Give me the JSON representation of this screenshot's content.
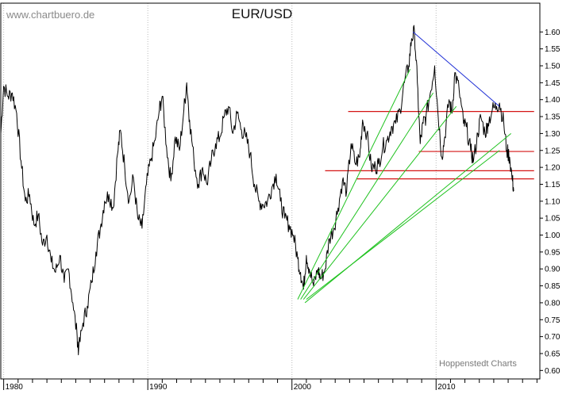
{
  "header": {
    "watermark": "www.chartbuero.de",
    "title": "EUR/USD"
  },
  "footer": {
    "credit": "Hoppenstedt Charts"
  },
  "colors": {
    "price": "#000000",
    "downtrend": "#1f2fd6",
    "fan": "#1fc21f",
    "horizontal": "#d41414",
    "grid": "#bbbbbb",
    "frame": "#000000"
  },
  "chart_data": {
    "type": "line",
    "title": "EUR/USD",
    "xlabel": "",
    "ylabel": "",
    "xlim": [
      1979.8,
      2017.2
    ],
    "ylim": [
      0.575,
      1.685
    ],
    "x_ticks": [
      1980,
      1990,
      2000,
      2010
    ],
    "x_tick_labels": [
      "1980",
      "1990",
      "2000",
      "2010"
    ],
    "y_ticks": [
      0.6,
      0.65,
      0.7,
      0.75,
      0.8,
      0.85,
      0.9,
      0.95,
      1.0,
      1.05,
      1.1,
      1.15,
      1.2,
      1.25,
      1.3,
      1.35,
      1.4,
      1.45,
      1.5,
      1.55,
      1.6
    ],
    "y_tick_labels": [
      "0.60",
      "0.65",
      "0.70",
      "0.75",
      "0.80",
      "0.85",
      "0.90",
      "0.95",
      "1.00",
      "1.05",
      "1.10",
      "1.15",
      "1.20",
      "1.25",
      "1.30",
      "1.35",
      "1.40",
      "1.45",
      "1.50",
      "1.55",
      "1.60"
    ],
    "y_axis_side": "right",
    "grid": "vertical dotted",
    "series": [
      {
        "points": [
          [
            1979.8,
            1.3
          ],
          [
            1980.0,
            1.44
          ],
          [
            1980.3,
            1.41
          ],
          [
            1980.6,
            1.42
          ],
          [
            1980.9,
            1.36
          ],
          [
            1981.2,
            1.22
          ],
          [
            1981.5,
            1.1
          ],
          [
            1981.8,
            1.12
          ],
          [
            1982.1,
            1.03
          ],
          [
            1982.4,
            1.06
          ],
          [
            1982.7,
            0.97
          ],
          [
            1983.0,
            1.0
          ],
          [
            1983.3,
            0.92
          ],
          [
            1983.6,
            0.89
          ],
          [
            1983.9,
            0.94
          ],
          [
            1984.2,
            0.86
          ],
          [
            1984.5,
            0.9
          ],
          [
            1984.8,
            0.8
          ],
          [
            1985.1,
            0.7
          ],
          [
            1985.2,
            0.66
          ],
          [
            1985.5,
            0.74
          ],
          [
            1985.8,
            0.79
          ],
          [
            1986.1,
            0.86
          ],
          [
            1986.4,
            0.95
          ],
          [
            1986.7,
            1.02
          ],
          [
            1987.0,
            1.1
          ],
          [
            1987.3,
            1.12
          ],
          [
            1987.6,
            1.08
          ],
          [
            1987.9,
            1.24
          ],
          [
            1988.1,
            1.31
          ],
          [
            1988.4,
            1.2
          ],
          [
            1988.7,
            1.1
          ],
          [
            1989.0,
            1.17
          ],
          [
            1989.3,
            1.05
          ],
          [
            1989.6,
            1.02
          ],
          [
            1989.9,
            1.15
          ],
          [
            1990.2,
            1.22
          ],
          [
            1990.5,
            1.28
          ],
          [
            1990.8,
            1.37
          ],
          [
            1991.0,
            1.41
          ],
          [
            1991.3,
            1.26
          ],
          [
            1991.6,
            1.16
          ],
          [
            1991.9,
            1.29
          ],
          [
            1992.2,
            1.25
          ],
          [
            1992.5,
            1.37
          ],
          [
            1992.7,
            1.45
          ],
          [
            1992.9,
            1.34
          ],
          [
            1993.2,
            1.22
          ],
          [
            1993.5,
            1.15
          ],
          [
            1993.8,
            1.2
          ],
          [
            1994.1,
            1.15
          ],
          [
            1994.4,
            1.22
          ],
          [
            1994.7,
            1.27
          ],
          [
            1995.0,
            1.29
          ],
          [
            1995.3,
            1.35
          ],
          [
            1995.6,
            1.38
          ],
          [
            1995.9,
            1.3
          ],
          [
            1996.2,
            1.36
          ],
          [
            1996.5,
            1.31
          ],
          [
            1996.8,
            1.29
          ],
          [
            1997.1,
            1.24
          ],
          [
            1997.4,
            1.15
          ],
          [
            1997.7,
            1.1
          ],
          [
            1998.0,
            1.09
          ],
          [
            1998.3,
            1.1
          ],
          [
            1998.6,
            1.14
          ],
          [
            1998.9,
            1.18
          ],
          [
            1999.2,
            1.1
          ],
          [
            1999.5,
            1.05
          ],
          [
            1999.8,
            1.03
          ],
          [
            2000.1,
            1.0
          ],
          [
            2000.4,
            0.93
          ],
          [
            2000.6,
            0.89
          ],
          [
            2000.8,
            0.84
          ],
          [
            2001.0,
            0.94
          ],
          [
            2001.2,
            0.9
          ],
          [
            2001.5,
            0.85
          ],
          [
            2001.8,
            0.9
          ],
          [
            2002.0,
            0.87
          ],
          [
            2002.3,
            0.9
          ],
          [
            2002.6,
            0.99
          ],
          [
            2002.9,
            1.02
          ],
          [
            2003.2,
            1.08
          ],
          [
            2003.5,
            1.16
          ],
          [
            2003.8,
            1.13
          ],
          [
            2004.1,
            1.27
          ],
          [
            2004.4,
            1.21
          ],
          [
            2004.7,
            1.23
          ],
          [
            2004.9,
            1.34
          ],
          [
            2005.2,
            1.3
          ],
          [
            2005.5,
            1.2
          ],
          [
            2005.8,
            1.2
          ],
          [
            2006.0,
            1.21
          ],
          [
            2006.3,
            1.26
          ],
          [
            2006.6,
            1.28
          ],
          [
            2006.9,
            1.32
          ],
          [
            2007.2,
            1.33
          ],
          [
            2007.5,
            1.37
          ],
          [
            2007.8,
            1.45
          ],
          [
            2008.1,
            1.5
          ],
          [
            2008.3,
            1.58
          ],
          [
            2008.5,
            1.6
          ],
          [
            2008.7,
            1.45
          ],
          [
            2008.9,
            1.27
          ],
          [
            2009.1,
            1.33
          ],
          [
            2009.3,
            1.35
          ],
          [
            2009.6,
            1.42
          ],
          [
            2009.9,
            1.5
          ],
          [
            2010.1,
            1.38
          ],
          [
            2010.4,
            1.23
          ],
          [
            2010.6,
            1.29
          ],
          [
            2010.9,
            1.4
          ],
          [
            2011.1,
            1.36
          ],
          [
            2011.3,
            1.48
          ],
          [
            2011.6,
            1.43
          ],
          [
            2011.9,
            1.33
          ],
          [
            2012.1,
            1.32
          ],
          [
            2012.4,
            1.25
          ],
          [
            2012.6,
            1.22
          ],
          [
            2012.9,
            1.3
          ],
          [
            2013.1,
            1.35
          ],
          [
            2013.4,
            1.3
          ],
          [
            2013.6,
            1.33
          ],
          [
            2013.9,
            1.37
          ],
          [
            2014.2,
            1.38
          ],
          [
            2014.4,
            1.39
          ],
          [
            2014.7,
            1.33
          ],
          [
            2014.9,
            1.25
          ],
          [
            2015.1,
            1.23
          ],
          [
            2015.3,
            1.16
          ],
          [
            2015.4,
            1.13
          ]
        ]
      }
    ],
    "trendlines": [
      {
        "kind": "downtrend",
        "from": [
          2008.4,
          1.6
        ],
        "to": [
          2014.4,
          1.38
        ]
      },
      {
        "kind": "fan",
        "from": [
          2000.4,
          0.81
        ],
        "to": [
          2008.2,
          1.49
        ]
      },
      {
        "kind": "fan",
        "from": [
          2000.6,
          0.81
        ],
        "to": [
          2009.8,
          1.42
        ]
      },
      {
        "kind": "fan",
        "from": [
          2000.8,
          0.81
        ],
        "to": [
          2011.4,
          1.38
        ]
      },
      {
        "kind": "fan",
        "from": [
          2000.9,
          0.8
        ],
        "to": [
          2015.2,
          1.3
        ]
      },
      {
        "kind": "fan",
        "from": [
          2001.0,
          0.81
        ],
        "to": [
          2014.4,
          1.25
        ]
      }
    ],
    "horizontal_lines": [
      {
        "y": 1.365,
        "x_from": 2003.9,
        "x_to": 2016.8
      },
      {
        "y": 1.247,
        "x_from": 2008.8,
        "x_to": 2016.8
      },
      {
        "y": 1.19,
        "x_from": 2002.3,
        "x_to": 2016.8
      },
      {
        "y": 1.166,
        "x_from": 2004.5,
        "x_to": 2016.8
      }
    ]
  }
}
